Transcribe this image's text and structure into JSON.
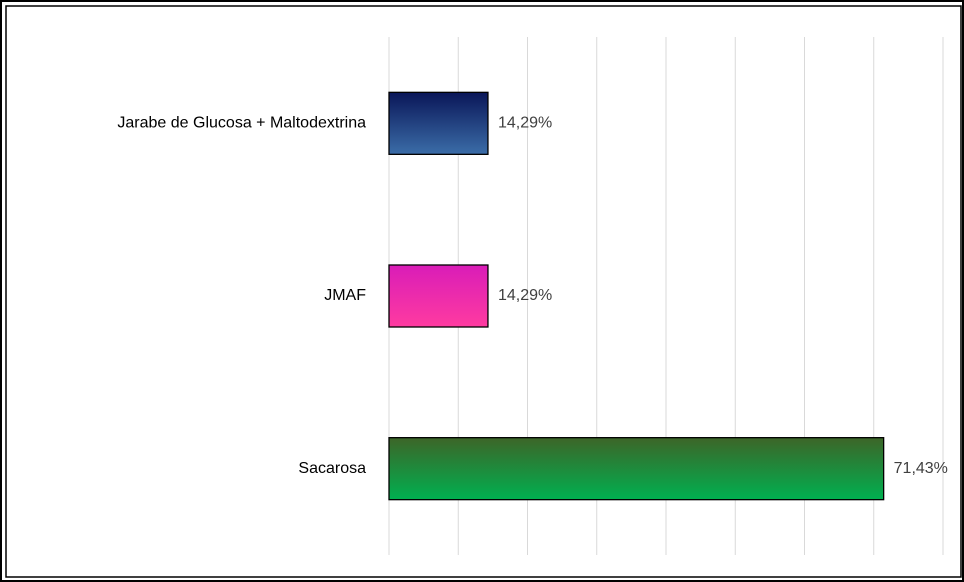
{
  "chart_data": {
    "type": "bar",
    "orientation": "horizontal",
    "categories": [
      "Jarabe de Glucosa + Maltodextrina",
      "JMAF",
      "Sacarosa"
    ],
    "values": [
      14.29,
      14.29,
      71.43
    ],
    "value_labels": [
      "14,29%",
      "14,29%",
      "71,43%"
    ],
    "colors": [
      [
        "#0a1658",
        "#3b6da8"
      ],
      [
        "#d91cb8",
        "#ff3ba0"
      ],
      [
        "#3d6528",
        "#00b050"
      ]
    ],
    "xlim": [
      0,
      80
    ],
    "xticks": [
      0,
      10,
      20,
      30,
      40,
      50,
      60,
      70,
      80
    ],
    "grid": true
  }
}
